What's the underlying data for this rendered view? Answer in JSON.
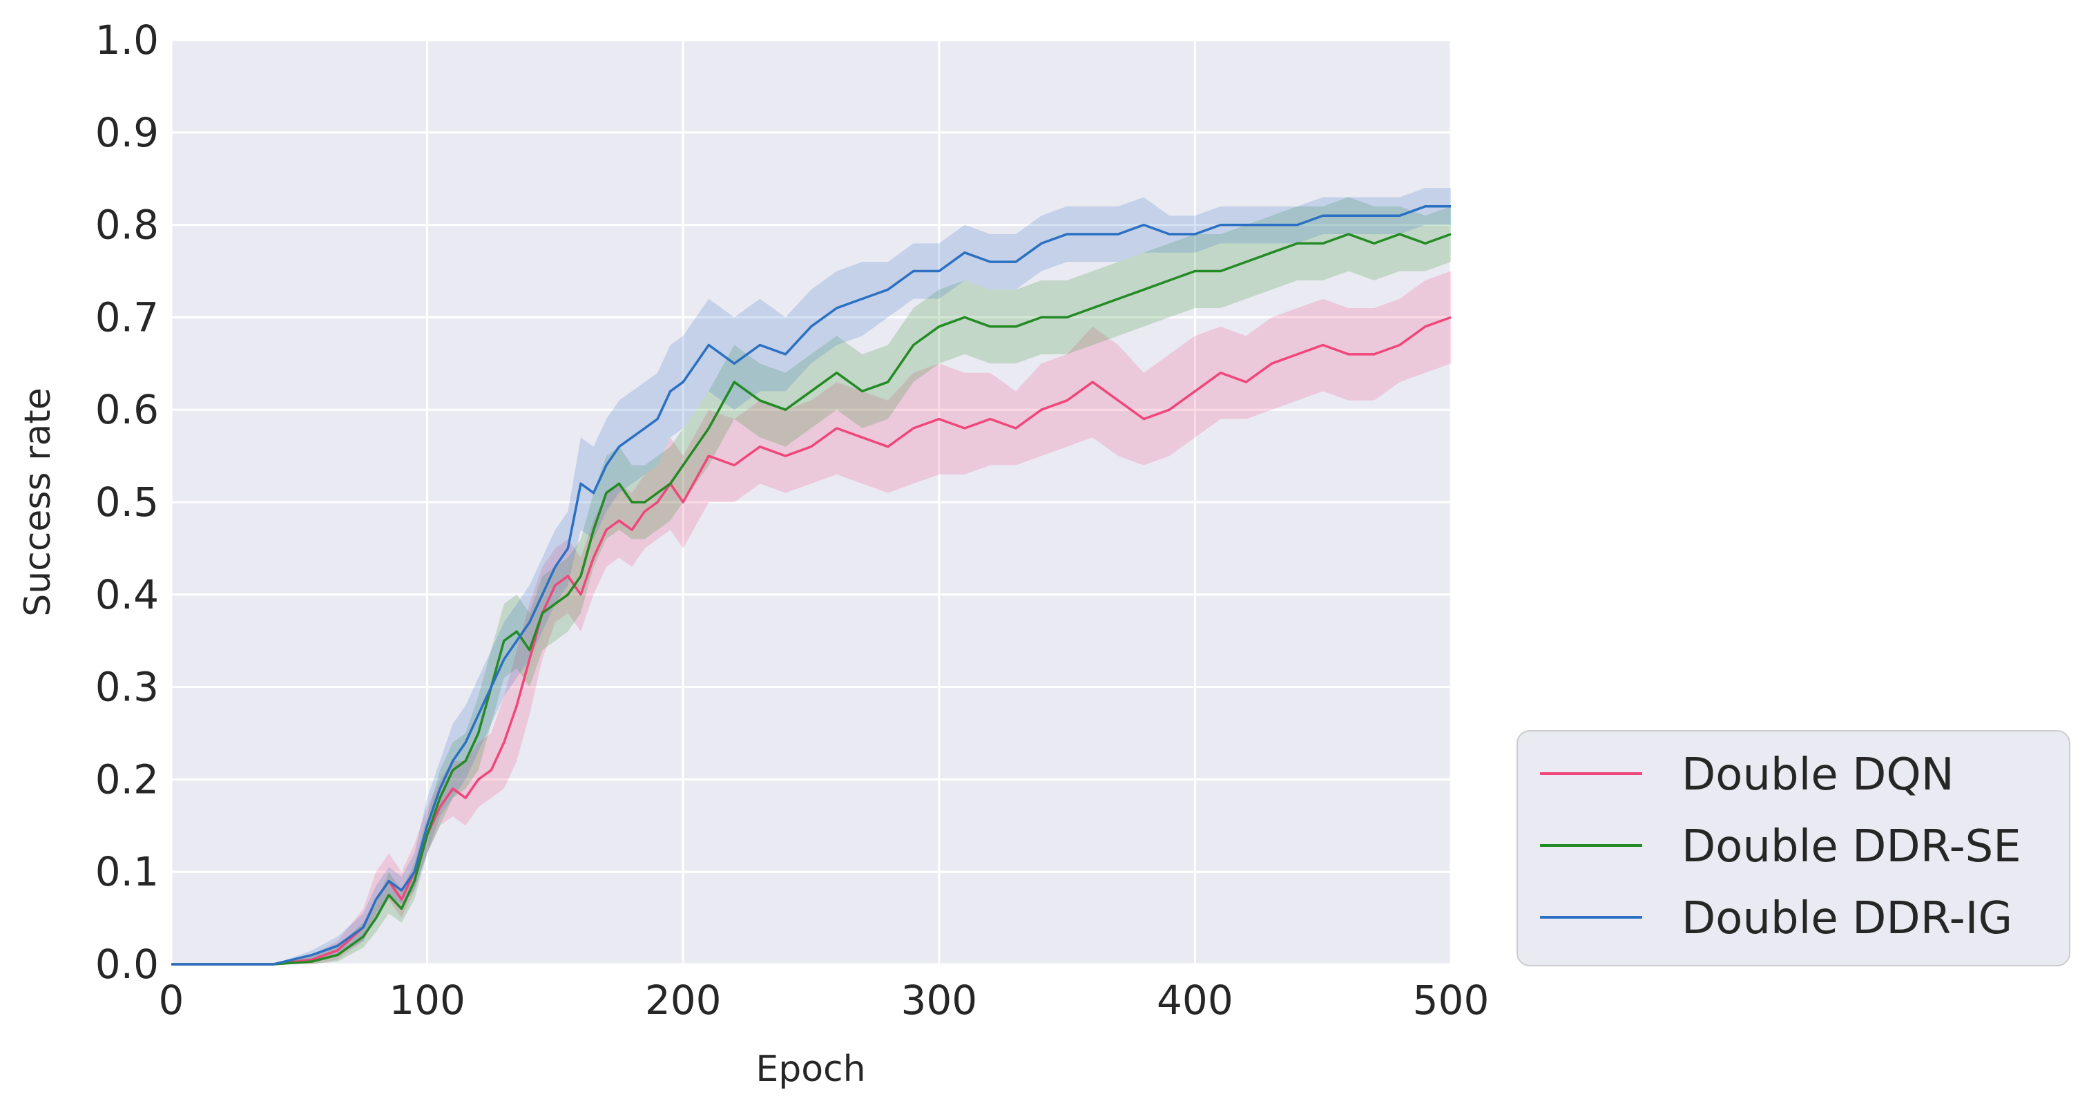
{
  "chart_data": {
    "type": "line",
    "xlabel": "Epoch",
    "ylabel": "Success rate",
    "xlim": [
      0,
      500
    ],
    "ylim": [
      0,
      1.0
    ],
    "xticks": [
      "0",
      "100",
      "200",
      "300",
      "400",
      "500"
    ],
    "yticks": [
      "0.0",
      "0.1",
      "0.2",
      "0.3",
      "0.4",
      "0.5",
      "0.6",
      "0.7",
      "0.8",
      "0.9",
      "1.0"
    ],
    "grid": true,
    "legend_position": "outside-bottom-right",
    "background": "#eaeaf2",
    "series": [
      {
        "name": "Double DQN",
        "color": "#f0467c",
        "x": [
          0,
          20,
          40,
          55,
          65,
          75,
          80,
          85,
          90,
          95,
          100,
          105,
          110,
          115,
          120,
          125,
          130,
          135,
          140,
          145,
          150,
          155,
          160,
          165,
          170,
          175,
          180,
          185,
          190,
          195,
          200,
          210,
          220,
          230,
          240,
          250,
          260,
          270,
          280,
          290,
          300,
          310,
          320,
          330,
          340,
          350,
          360,
          370,
          380,
          390,
          400,
          410,
          420,
          430,
          440,
          450,
          460,
          470,
          480,
          490,
          500
        ],
        "y": [
          0,
          0,
          0,
          0.005,
          0.015,
          0.04,
          0.07,
          0.09,
          0.07,
          0.1,
          0.14,
          0.17,
          0.19,
          0.18,
          0.2,
          0.21,
          0.24,
          0.28,
          0.33,
          0.38,
          0.41,
          0.42,
          0.4,
          0.44,
          0.47,
          0.48,
          0.47,
          0.49,
          0.5,
          0.52,
          0.5,
          0.55,
          0.54,
          0.56,
          0.55,
          0.56,
          0.58,
          0.57,
          0.56,
          0.58,
          0.59,
          0.58,
          0.59,
          0.58,
          0.6,
          0.61,
          0.63,
          0.61,
          0.59,
          0.6,
          0.62,
          0.64,
          0.63,
          0.65,
          0.66,
          0.67,
          0.66,
          0.66,
          0.67,
          0.69,
          0.7
        ],
        "lower": [
          0,
          0,
          0,
          0,
          0.005,
          0.025,
          0.05,
          0.07,
          0.05,
          0.08,
          0.12,
          0.15,
          0.16,
          0.15,
          0.17,
          0.18,
          0.19,
          0.22,
          0.27,
          0.33,
          0.37,
          0.38,
          0.36,
          0.4,
          0.43,
          0.44,
          0.43,
          0.45,
          0.46,
          0.47,
          0.45,
          0.5,
          0.5,
          0.52,
          0.51,
          0.52,
          0.53,
          0.52,
          0.51,
          0.52,
          0.53,
          0.53,
          0.54,
          0.54,
          0.55,
          0.56,
          0.57,
          0.55,
          0.54,
          0.55,
          0.57,
          0.59,
          0.59,
          0.6,
          0.61,
          0.62,
          0.61,
          0.61,
          0.63,
          0.64,
          0.65
        ],
        "upper": [
          0,
          0,
          0,
          0.01,
          0.025,
          0.06,
          0.1,
          0.12,
          0.1,
          0.13,
          0.17,
          0.2,
          0.22,
          0.22,
          0.24,
          0.25,
          0.29,
          0.34,
          0.39,
          0.43,
          0.45,
          0.46,
          0.44,
          0.48,
          0.51,
          0.52,
          0.51,
          0.53,
          0.54,
          0.57,
          0.55,
          0.6,
          0.59,
          0.61,
          0.6,
          0.61,
          0.63,
          0.62,
          0.61,
          0.64,
          0.65,
          0.64,
          0.64,
          0.62,
          0.65,
          0.66,
          0.69,
          0.67,
          0.64,
          0.66,
          0.68,
          0.69,
          0.68,
          0.7,
          0.71,
          0.72,
          0.71,
          0.71,
          0.72,
          0.74,
          0.75
        ]
      },
      {
        "name": "Double DDR-SE",
        "color": "#238a24",
        "x": [
          0,
          20,
          40,
          55,
          65,
          75,
          80,
          85,
          90,
          95,
          100,
          105,
          110,
          115,
          120,
          125,
          130,
          135,
          140,
          145,
          150,
          155,
          160,
          165,
          170,
          175,
          180,
          185,
          190,
          195,
          200,
          210,
          220,
          230,
          240,
          250,
          260,
          270,
          280,
          290,
          300,
          310,
          320,
          330,
          340,
          350,
          360,
          370,
          380,
          390,
          400,
          410,
          420,
          430,
          440,
          450,
          460,
          470,
          480,
          490,
          500
        ],
        "y": [
          0,
          0,
          0,
          0.003,
          0.01,
          0.03,
          0.05,
          0.075,
          0.06,
          0.09,
          0.14,
          0.18,
          0.21,
          0.22,
          0.25,
          0.3,
          0.35,
          0.36,
          0.34,
          0.38,
          0.39,
          0.4,
          0.42,
          0.47,
          0.51,
          0.52,
          0.5,
          0.5,
          0.51,
          0.52,
          0.54,
          0.58,
          0.63,
          0.61,
          0.6,
          0.62,
          0.64,
          0.62,
          0.63,
          0.67,
          0.69,
          0.7,
          0.69,
          0.69,
          0.7,
          0.7,
          0.71,
          0.72,
          0.73,
          0.74,
          0.75,
          0.75,
          0.76,
          0.77,
          0.78,
          0.78,
          0.79,
          0.78,
          0.79,
          0.78,
          0.79
        ],
        "lower": [
          0,
          0,
          0,
          0,
          0.003,
          0.018,
          0.035,
          0.055,
          0.045,
          0.07,
          0.12,
          0.15,
          0.18,
          0.19,
          0.21,
          0.26,
          0.31,
          0.32,
          0.3,
          0.34,
          0.35,
          0.36,
          0.38,
          0.43,
          0.46,
          0.47,
          0.46,
          0.46,
          0.47,
          0.48,
          0.5,
          0.54,
          0.59,
          0.57,
          0.56,
          0.58,
          0.6,
          0.58,
          0.59,
          0.63,
          0.65,
          0.66,
          0.65,
          0.65,
          0.66,
          0.66,
          0.67,
          0.68,
          0.69,
          0.7,
          0.71,
          0.71,
          0.72,
          0.73,
          0.74,
          0.74,
          0.75,
          0.74,
          0.75,
          0.75,
          0.76
        ],
        "upper": [
          0,
          0,
          0,
          0.008,
          0.02,
          0.045,
          0.065,
          0.1,
          0.08,
          0.11,
          0.16,
          0.21,
          0.24,
          0.25,
          0.29,
          0.34,
          0.39,
          0.4,
          0.38,
          0.42,
          0.43,
          0.44,
          0.46,
          0.51,
          0.55,
          0.56,
          0.54,
          0.54,
          0.55,
          0.56,
          0.58,
          0.62,
          0.67,
          0.65,
          0.64,
          0.66,
          0.68,
          0.66,
          0.67,
          0.71,
          0.73,
          0.74,
          0.73,
          0.73,
          0.74,
          0.74,
          0.75,
          0.76,
          0.77,
          0.78,
          0.79,
          0.79,
          0.8,
          0.81,
          0.82,
          0.82,
          0.83,
          0.82,
          0.82,
          0.81,
          0.82
        ]
      },
      {
        "name": "Double DDR-IG",
        "color": "#2b70c2",
        "x": [
          0,
          20,
          40,
          55,
          65,
          75,
          80,
          85,
          90,
          95,
          100,
          105,
          110,
          115,
          120,
          125,
          130,
          135,
          140,
          145,
          150,
          155,
          160,
          165,
          170,
          175,
          180,
          185,
          190,
          195,
          200,
          210,
          220,
          230,
          240,
          250,
          260,
          270,
          280,
          290,
          300,
          310,
          320,
          330,
          340,
          350,
          360,
          370,
          380,
          390,
          400,
          410,
          420,
          430,
          440,
          450,
          460,
          470,
          480,
          490,
          500
        ],
        "y": [
          0,
          0,
          0,
          0.01,
          0.02,
          0.04,
          0.07,
          0.09,
          0.08,
          0.1,
          0.15,
          0.19,
          0.22,
          0.24,
          0.27,
          0.3,
          0.33,
          0.35,
          0.37,
          0.4,
          0.43,
          0.45,
          0.52,
          0.51,
          0.54,
          0.56,
          0.57,
          0.58,
          0.59,
          0.62,
          0.63,
          0.67,
          0.65,
          0.67,
          0.66,
          0.69,
          0.71,
          0.72,
          0.73,
          0.75,
          0.75,
          0.77,
          0.76,
          0.76,
          0.78,
          0.79,
          0.79,
          0.79,
          0.8,
          0.79,
          0.79,
          0.8,
          0.8,
          0.8,
          0.8,
          0.81,
          0.81,
          0.81,
          0.81,
          0.82,
          0.82
        ],
        "lower": [
          0,
          0,
          0,
          0.003,
          0.01,
          0.025,
          0.055,
          0.075,
          0.065,
          0.08,
          0.12,
          0.16,
          0.18,
          0.2,
          0.23,
          0.26,
          0.29,
          0.31,
          0.33,
          0.36,
          0.39,
          0.41,
          0.47,
          0.46,
          0.49,
          0.51,
          0.52,
          0.53,
          0.54,
          0.57,
          0.58,
          0.62,
          0.6,
          0.62,
          0.62,
          0.65,
          0.67,
          0.68,
          0.7,
          0.72,
          0.72,
          0.74,
          0.73,
          0.73,
          0.75,
          0.76,
          0.76,
          0.76,
          0.77,
          0.77,
          0.77,
          0.78,
          0.78,
          0.78,
          0.78,
          0.79,
          0.79,
          0.79,
          0.79,
          0.8,
          0.8
        ],
        "upper": [
          0,
          0,
          0,
          0.015,
          0.03,
          0.055,
          0.085,
          0.105,
          0.095,
          0.12,
          0.18,
          0.22,
          0.26,
          0.28,
          0.31,
          0.34,
          0.37,
          0.39,
          0.41,
          0.44,
          0.47,
          0.49,
          0.57,
          0.56,
          0.59,
          0.61,
          0.62,
          0.63,
          0.64,
          0.67,
          0.68,
          0.72,
          0.7,
          0.72,
          0.7,
          0.73,
          0.75,
          0.76,
          0.76,
          0.78,
          0.78,
          0.8,
          0.79,
          0.79,
          0.81,
          0.82,
          0.82,
          0.82,
          0.83,
          0.81,
          0.81,
          0.82,
          0.82,
          0.82,
          0.82,
          0.83,
          0.83,
          0.83,
          0.83,
          0.84,
          0.84
        ]
      }
    ]
  }
}
